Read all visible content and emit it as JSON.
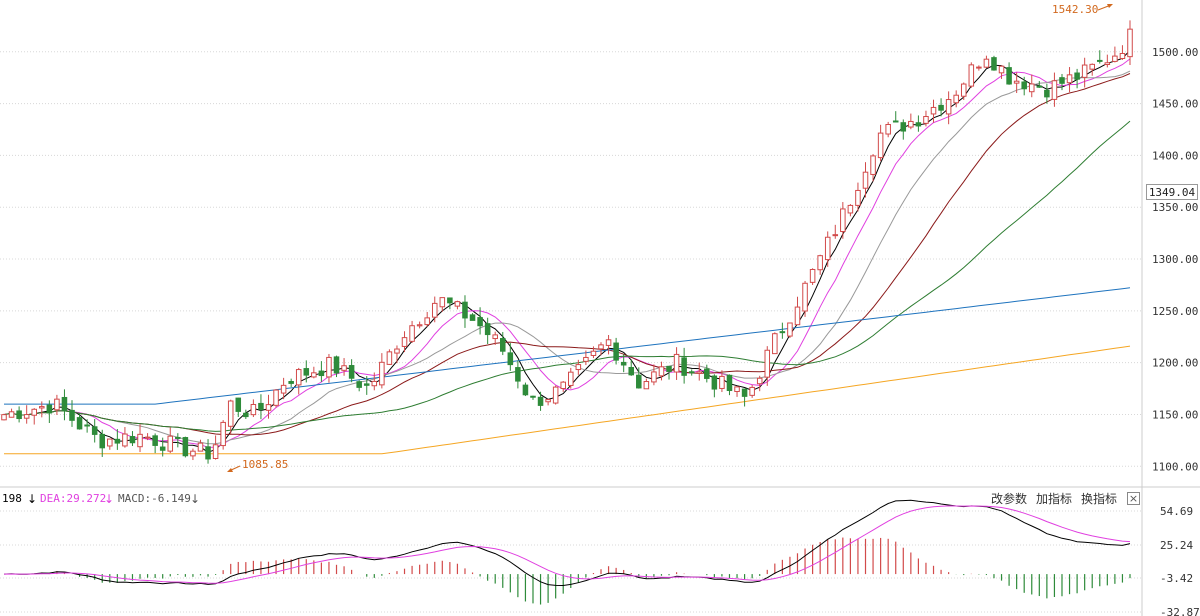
{
  "chart_data": [
    {
      "type": "candlestick",
      "yticks": [
        "1100.00",
        "1150.00",
        "1200.00",
        "1250.00",
        "1300.00",
        "1350.00",
        "1400.00",
        "1450.00",
        "1500.00"
      ],
      "ylim": [
        1080,
        1550
      ],
      "grid": true,
      "current_price": "1349.04",
      "annotations": [
        {
          "text": "1542.30",
          "value": 1542.3
        },
        {
          "text": "1085.85",
          "value": 1085.85
        }
      ],
      "ma_colors": {
        "ma5": "#000000",
        "ma10": "#e040e0",
        "ma20": "#999999",
        "ma30": "#8b1a1a",
        "ma60": "#2e7d32",
        "ma120": "#1e73be",
        "ma250": "#f5a623"
      },
      "up_color": "#d24a4a",
      "down_color": "#2e8b3a"
    },
    {
      "type": "macd",
      "legend": [
        {
          "text": "198",
          "color": "#000000"
        },
        {
          "text": "DEA:29.272",
          "color": "#e040e0"
        },
        {
          "text": "MACD:-6.149",
          "color": "#555555"
        }
      ],
      "yticks": [
        "54.69",
        "25.24",
        "-3.42",
        "-32.87"
      ],
      "ylim": [
        -32.87,
        54.69
      ]
    }
  ],
  "toolbar": {
    "change_params": "改参数",
    "add_indicator": "加指标",
    "switch_indicator": "换指标",
    "close": "×"
  }
}
